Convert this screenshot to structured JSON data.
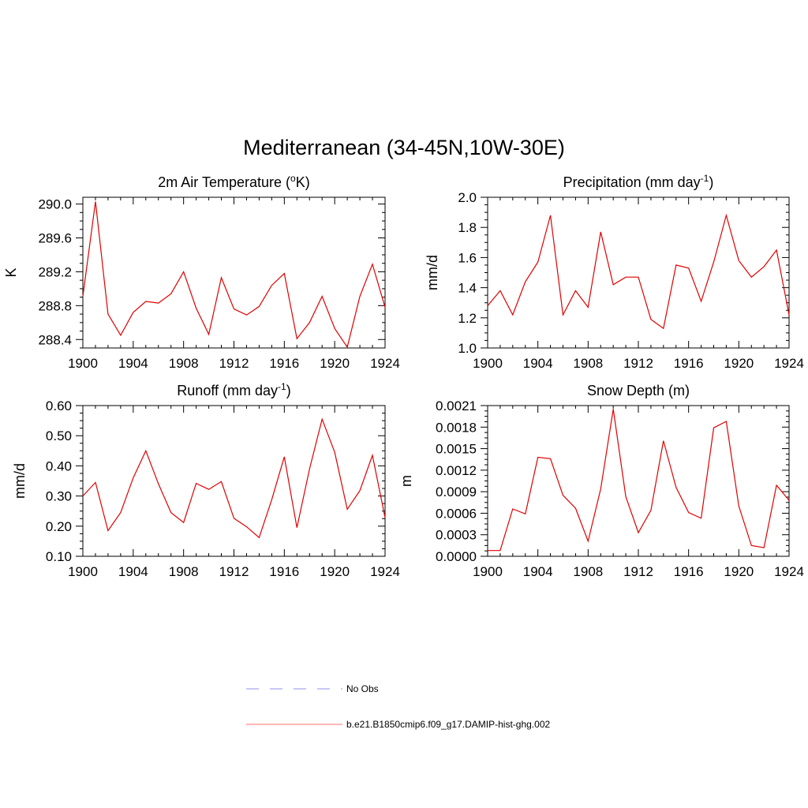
{
  "figure": {
    "title": "Mediterranean (34-45N,10W-30E)"
  },
  "chart_data": [
    {
      "type": "line",
      "title": "2m Air Temperature (",
      "title_sup": "o",
      "title_after": "K)",
      "xlabel": "",
      "ylabel": "K",
      "xlim": [
        1900,
        1924
      ],
      "ylim": [
        288.3,
        290.08
      ],
      "xticks": [
        1900,
        1904,
        1908,
        1912,
        1916,
        1920,
        1924
      ],
      "yticks": [
        288.4,
        288.8,
        289.2,
        289.6,
        290.0
      ],
      "ytick_labels": [
        "288.4",
        "288.8",
        "289.2",
        "289.6",
        "290.0"
      ],
      "x": [
        1900,
        1901,
        1902,
        1903,
        1904,
        1905,
        1906,
        1907,
        1908,
        1909,
        1910,
        1911,
        1912,
        1913,
        1914,
        1915,
        1916,
        1917,
        1918,
        1919,
        1920,
        1921,
        1922,
        1923,
        1924
      ],
      "series": [
        {
          "name": "b.e21.B1850cmip6.f09_g17.DAMIP-hist-ghg.002",
          "color": "#e00000",
          "values": [
            288.91,
            290.03,
            288.7,
            288.45,
            288.72,
            288.85,
            288.83,
            288.94,
            289.2,
            288.77,
            288.46,
            289.13,
            288.76,
            288.69,
            288.79,
            289.04,
            289.18,
            288.41,
            288.6,
            288.91,
            288.53,
            288.31,
            288.91,
            289.29,
            288.78
          ]
        }
      ]
    },
    {
      "type": "line",
      "title": "Precipitation (mm day",
      "title_sup": "-1",
      "title_after": ")",
      "xlabel": "",
      "ylabel": "mm/d",
      "xlim": [
        1900,
        1924
      ],
      "ylim": [
        1.0,
        2.0
      ],
      "xticks": [
        1900,
        1904,
        1908,
        1912,
        1916,
        1920,
        1924
      ],
      "yticks": [
        1.0,
        1.2,
        1.4,
        1.6,
        1.8,
        2.0
      ],
      "ytick_labels": [
        "1.0",
        "1.2",
        "1.4",
        "1.6",
        "1.8",
        "2.0"
      ],
      "x": [
        1900,
        1901,
        1902,
        1903,
        1904,
        1905,
        1906,
        1907,
        1908,
        1909,
        1910,
        1911,
        1912,
        1913,
        1914,
        1915,
        1916,
        1917,
        1918,
        1919,
        1920,
        1921,
        1922,
        1923,
        1924
      ],
      "series": [
        {
          "name": "b.e21.B1850cmip6.f09_g17.DAMIP-hist-ghg.002",
          "color": "#e00000",
          "values": [
            1.28,
            1.38,
            1.22,
            1.44,
            1.57,
            1.88,
            1.22,
            1.38,
            1.27,
            1.77,
            1.42,
            1.47,
            1.47,
            1.19,
            1.13,
            1.55,
            1.53,
            1.31,
            1.57,
            1.88,
            1.58,
            1.47,
            1.54,
            1.65,
            1.22
          ]
        }
      ]
    },
    {
      "type": "line",
      "title": "Runoff (mm day",
      "title_sup": "-1",
      "title_after": ")",
      "xlabel": "",
      "ylabel": "mm/d",
      "xlim": [
        1900,
        1924
      ],
      "ylim": [
        0.1,
        0.6
      ],
      "xticks": [
        1900,
        1904,
        1908,
        1912,
        1916,
        1920,
        1924
      ],
      "yticks": [
        0.1,
        0.2,
        0.3,
        0.4,
        0.5,
        0.6
      ],
      "ytick_labels": [
        "0.10",
        "0.20",
        "0.30",
        "0.40",
        "0.50",
        "0.60"
      ],
      "x": [
        1900,
        1901,
        1902,
        1903,
        1904,
        1905,
        1906,
        1907,
        1908,
        1909,
        1910,
        1911,
        1912,
        1913,
        1914,
        1915,
        1916,
        1917,
        1918,
        1919,
        1920,
        1921,
        1922,
        1923,
        1924
      ],
      "series": [
        {
          "name": "b.e21.B1850cmip6.f09_g17.DAMIP-hist-ghg.002",
          "color": "#e00000",
          "values": [
            0.3,
            0.345,
            0.185,
            0.245,
            0.36,
            0.45,
            0.34,
            0.245,
            0.212,
            0.342,
            0.322,
            0.348,
            0.226,
            0.198,
            0.162,
            0.288,
            0.43,
            0.195,
            0.39,
            0.555,
            0.445,
            0.256,
            0.318,
            0.435,
            0.228
          ]
        }
      ]
    },
    {
      "type": "line",
      "title": "Snow Depth (m)",
      "title_sup": "",
      "title_after": "",
      "xlabel": "",
      "ylabel": "m",
      "xlim": [
        1900,
        1924
      ],
      "ylim": [
        0,
        0.0021
      ],
      "xticks": [
        1900,
        1904,
        1908,
        1912,
        1916,
        1920,
        1924
      ],
      "yticks": [
        0,
        0.0003,
        0.0006,
        0.0009,
        0.0012,
        0.0015,
        0.0018,
        0.0021
      ],
      "ytick_labels": [
        "0.0000",
        "0.0003",
        "0.0006",
        "0.0009",
        "0.0012",
        "0.0015",
        "0.0018",
        "0.0021"
      ],
      "x": [
        1900,
        1901,
        1902,
        1903,
        1904,
        1905,
        1906,
        1907,
        1908,
        1909,
        1910,
        1911,
        1912,
        1913,
        1914,
        1915,
        1916,
        1917,
        1918,
        1919,
        1920,
        1921,
        1922,
        1923,
        1924
      ],
      "series": [
        {
          "name": "b.e21.B1850cmip6.f09_g17.DAMIP-hist-ghg.002",
          "color": "#e00000",
          "values": [
            8e-05,
            8e-05,
            0.00066,
            0.00059,
            0.00138,
            0.00136,
            0.00085,
            0.00067,
            0.00021,
            0.00094,
            0.00205,
            0.00083,
            0.00033,
            0.00064,
            0.00161,
            0.00096,
            0.00061,
            0.00053,
            0.00179,
            0.00188,
            0.0007,
            0.00015,
            0.00012,
            0.00099,
            0.00078
          ]
        }
      ]
    }
  ],
  "legend": {
    "placement": "bottom-center",
    "items": [
      {
        "label": "No Obs",
        "color": "#a8a8f0",
        "style": "dashed"
      },
      {
        "label": "b.e21.B1850cmip6.f09_g17.DAMIP-hist-ghg.002",
        "color": "#ff8a8a",
        "style": "solid"
      }
    ]
  }
}
